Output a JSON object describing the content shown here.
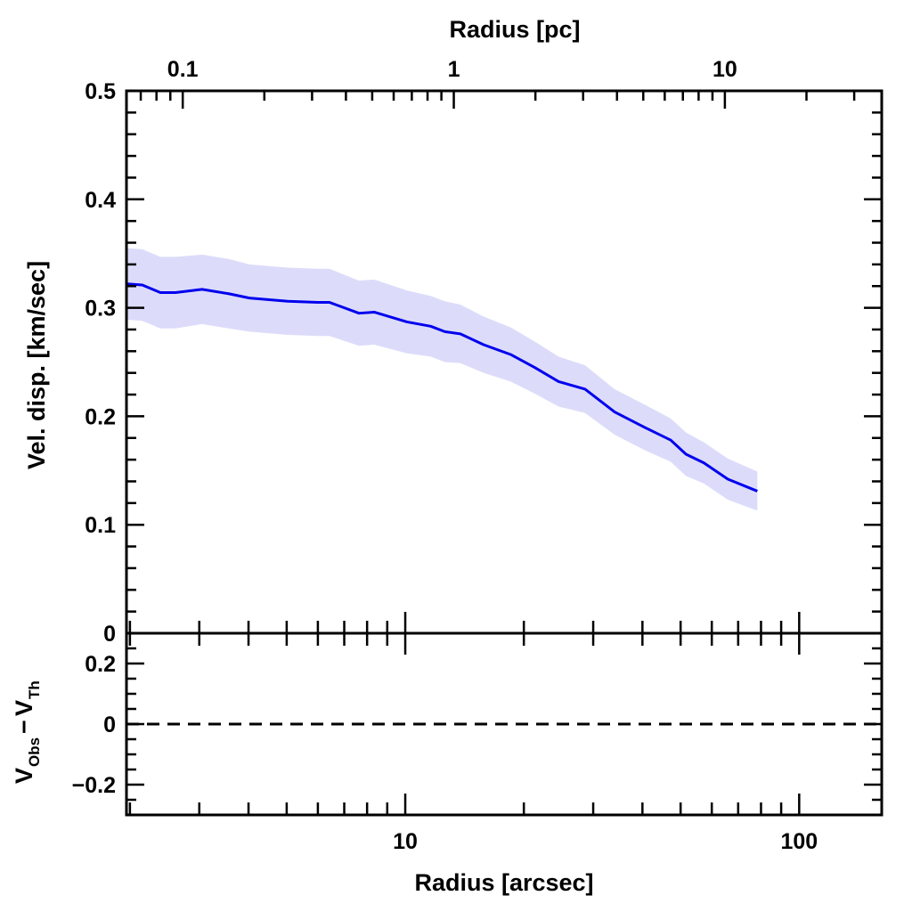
{
  "chart_data": [
    {
      "type": "line",
      "panel": "main",
      "xlabel": "Radius [arcsec]",
      "x2label": "Radius [pc]",
      "ylabel": "Vel. disp. [km/sec]",
      "xscale": "log",
      "xlim": [
        1.96,
        162
      ],
      "x2lim": [
        0.062,
        37.9
      ],
      "ylim": [
        0,
        0.5
      ],
      "xticks": [
        {
          "v": 10,
          "label": "10"
        },
        {
          "v": 100,
          "label": "100"
        }
      ],
      "x2ticks": [
        {
          "v": 0.1,
          "label": "0.1"
        },
        {
          "v": 1,
          "label": "1"
        },
        {
          "v": 10,
          "label": "10"
        }
      ],
      "yticks": [
        {
          "v": 0,
          "label": "0"
        },
        {
          "v": 0.1,
          "label": "0.1"
        },
        {
          "v": 0.2,
          "label": "0.2"
        },
        {
          "v": 0.3,
          "label": "0.3"
        },
        {
          "v": 0.4,
          "label": "0.4"
        },
        {
          "v": 0.5,
          "label": "0.5"
        }
      ],
      "line_color": "#0000ee",
      "band_color": "#dcdcfa",
      "series": [
        {
          "name": "Velocity dispersion",
          "x": [
            1.97,
            2.15,
            2.39,
            2.61,
            3.05,
            3.56,
            4.02,
            5.03,
            6.0,
            6.42,
            7.63,
            8.34,
            10.1,
            11.6,
            12.6,
            13.8,
            15.8,
            18.5,
            21.3,
            24.5,
            28.6,
            34.0,
            40.4,
            47.2,
            51.6,
            57.3,
            65.9,
            78.3
          ],
          "y": [
            0.322,
            0.321,
            0.314,
            0.314,
            0.317,
            0.313,
            0.309,
            0.306,
            0.305,
            0.305,
            0.295,
            0.296,
            0.287,
            0.283,
            0.278,
            0.276,
            0.266,
            0.257,
            0.245,
            0.232,
            0.225,
            0.204,
            0.19,
            0.178,
            0.165,
            0.157,
            0.142,
            0.131
          ],
          "err": [
            0.033,
            0.033,
            0.033,
            0.033,
            0.032,
            0.032,
            0.031,
            0.031,
            0.031,
            0.031,
            0.03,
            0.03,
            0.029,
            0.028,
            0.028,
            0.027,
            0.026,
            0.025,
            0.024,
            0.023,
            0.022,
            0.021,
            0.021,
            0.02,
            0.02,
            0.019,
            0.019,
            0.018
          ]
        }
      ]
    },
    {
      "type": "line",
      "panel": "residual",
      "ylabel_main": "V",
      "ylabel_sub1": "Obs",
      "ylabel_minus": "−",
      "ylabel_sub2": "Th",
      "ylim": [
        -0.3,
        0.3
      ],
      "yticks": [
        {
          "v": 0.2,
          "label": "0.2"
        },
        {
          "v": 0,
          "label": "0"
        },
        {
          "v": -0.2,
          "label": "−0.2"
        }
      ],
      "reference_line": {
        "y": 0,
        "style": "dashed"
      }
    }
  ]
}
